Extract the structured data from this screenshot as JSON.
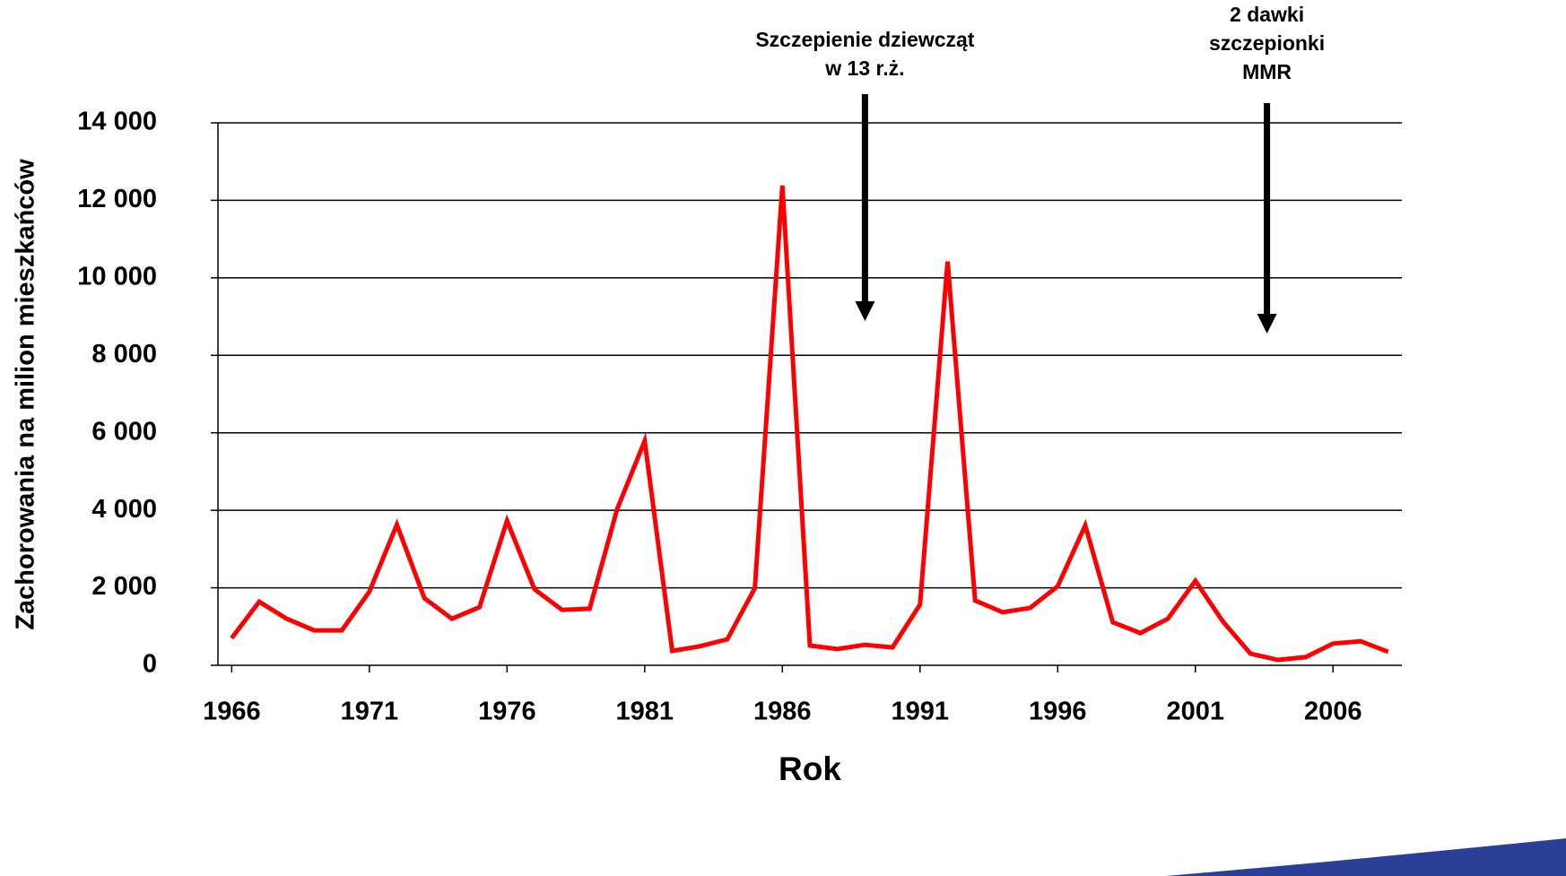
{
  "chart_data": {
    "type": "line",
    "x_label": "Rok",
    "y_label": "Zachorowania na milion mieszkańców",
    "x": [
      1966,
      1967,
      1968,
      1969,
      1970,
      1971,
      1972,
      1973,
      1974,
      1975,
      1976,
      1977,
      1978,
      1979,
      1980,
      1981,
      1982,
      1983,
      1984,
      1985,
      1986,
      1987,
      1988,
      1989,
      1990,
      1991,
      1992,
      1993,
      1994,
      1995,
      1996,
      1997,
      1998,
      1999,
      2000,
      2001,
      2002,
      2003,
      2004,
      2005,
      2006,
      2007,
      2008
    ],
    "series": [
      {
        "color": "#ff0000",
        "values": [
          700,
          1640,
          1200,
          900,
          900,
          1900,
          3630,
          1730,
          1200,
          1500,
          3730,
          1960,
          1430,
          1460,
          4030,
          5790,
          370,
          490,
          670,
          1990,
          12380,
          510,
          420,
          530,
          460,
          1570,
          10420,
          1670,
          1370,
          1480,
          2040,
          3610,
          1110,
          830,
          1200,
          2180,
          1130,
          300,
          140,
          210,
          560,
          620,
          350
        ]
      }
    ],
    "xlim": [
      1965.5,
      2008.5
    ],
    "xticks": [
      1966,
      1971,
      1976,
      1981,
      1986,
      1991,
      1996,
      2001,
      2006
    ],
    "ylim": [
      0,
      14000
    ],
    "yticks": [
      0,
      {
        "value": 2000,
        "label": "2 000"
      },
      {
        "value": 4000,
        "label": "4 000"
      },
      {
        "value": 6000,
        "label": "6 000"
      },
      {
        "value": 8000,
        "label": "8 000"
      },
      {
        "value": 10000,
        "label": "10 000"
      },
      {
        "value": 12000,
        "label": "12 000"
      },
      {
        "value": 14000,
        "label": "14 000"
      }
    ],
    "grid": true,
    "annotations": [
      {
        "lines": [
          "Szczepienie dziewcząt",
          "w 13 r.ż."
        ],
        "x": 1989
      },
      {
        "lines": [
          "2 dawki",
          "szczepionki",
          "MMR"
        ],
        "x": 2003.6
      }
    ]
  }
}
